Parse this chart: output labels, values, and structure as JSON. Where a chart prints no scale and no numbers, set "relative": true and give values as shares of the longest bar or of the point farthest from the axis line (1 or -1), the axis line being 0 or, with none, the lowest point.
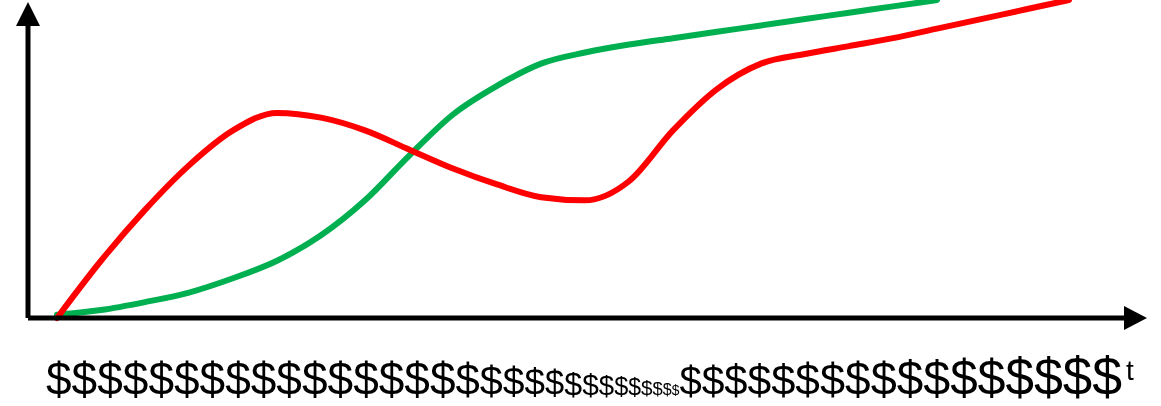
{
  "chart_data": {
    "type": "line",
    "relative": true,
    "xlabel": "t",
    "annotations": [
      "$$$$$$$$$$$$$$$$$$$$$$$$$$$$$$$$$$$$$$$$$$$$$$$"
    ],
    "categories": [
      null,
      null,
      null,
      null,
      null,
      null,
      null,
      null,
      null,
      null,
      null,
      null,
      null,
      null,
      null,
      null,
      null,
      null,
      null,
      null,
      null,
      null,
      null,
      null
    ],
    "series": [
      {
        "color": "#00b050",
        "values": [
          0.01,
          0.025,
          0.05,
          0.08,
          0.125,
          0.18,
          0.26,
          0.37,
          0.51,
          0.64,
          0.73,
          0.8,
          0.835,
          0.86,
          0.88,
          0.9,
          0.92,
          0.94,
          0.96,
          0.98,
          1,
          null,
          null,
          null
        ]
      },
      {
        "color": "#ff0000",
        "values": [
          0,
          0.18,
          0.34,
          0.48,
          0.59,
          0.645,
          0.63,
          0.59,
          0.53,
          0.47,
          0.42,
          0.38,
          0.37,
          0.43,
          0.59,
          0.72,
          0.8,
          0.83,
          0.855,
          0.88,
          0.91,
          0.94,
          0.97,
          1
        ]
      }
    ]
  }
}
